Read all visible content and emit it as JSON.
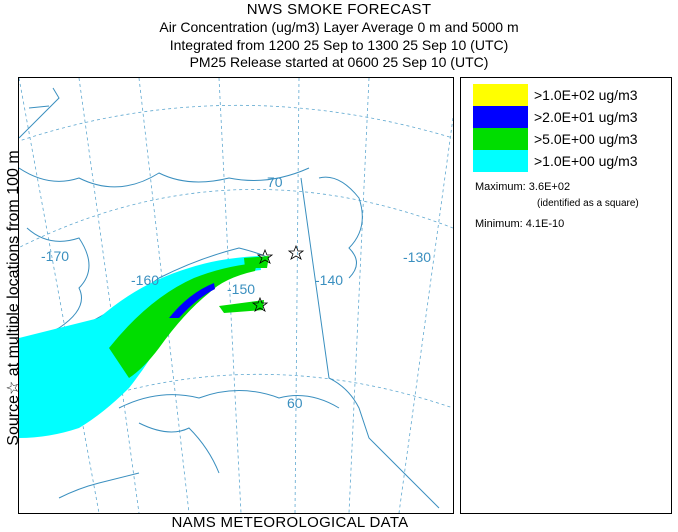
{
  "header": {
    "title": "NWS SMOKE FORECAST",
    "line2": "Air Concentration (ug/m3) Layer Average    0 m and  5000 m",
    "line3": "Integrated from 1200 25 Sep to 1300 25 Sep 10 (UTC)",
    "line4": "PM25 Release started at 0600 25 Sep 10 (UTC)"
  },
  "side_label": "Source☆ at multiple locations  from  100 m",
  "footer": "NAMS METEOROLOGICAL DATA",
  "map": {
    "grid_labels": {
      "lat_70": "70",
      "lat_60": "60",
      "lon_170": "-170",
      "lon_160": "-160",
      "lon_150": "-150",
      "lon_140": "-140",
      "lon_130": "-130"
    },
    "colors": {
      "coast": "#3a8fbf",
      "grid": "#5fa8d0",
      "cyan": "#00ffff",
      "green": "#00dd00",
      "blue": "#0000ff",
      "yellow": "#ffff00"
    }
  },
  "legend": {
    "items": [
      {
        "label": ">1.0E+02 ug/m3",
        "color": "#ffff00"
      },
      {
        "label": ">2.0E+01 ug/m3",
        "color": "#0000ff"
      },
      {
        "label": ">5.0E+00 ug/m3",
        "color": "#00dd00"
      },
      {
        "label": ">1.0E+00 ug/m3",
        "color": "#00ffff"
      }
    ],
    "maximum": "Maximum: 3.6E+02",
    "maximum_note": "(identified as a square)",
    "minimum": "Minimum: 4.1E-10"
  }
}
